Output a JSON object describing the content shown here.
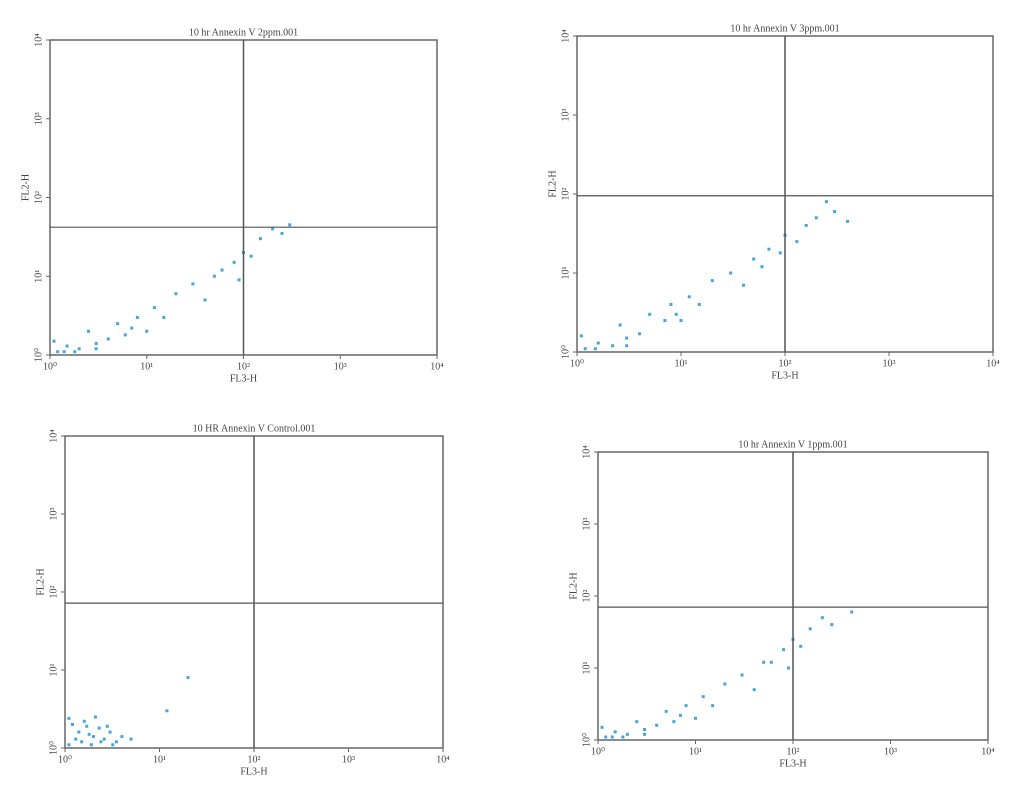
{
  "chart_data": [
    {
      "type": "scatter",
      "title": "10 hr Annexin V 2ppm.001",
      "x_label": "FL3-H",
      "y_label": "FL2-H",
      "log_scale": true,
      "xlim": [
        1,
        10000
      ],
      "ylim": [
        1,
        10000
      ],
      "xticks": [
        {
          "value": 1,
          "label": "10⁰"
        },
        {
          "value": 10,
          "label": "10¹"
        },
        {
          "value": 100,
          "label": "10²"
        },
        {
          "value": 1000,
          "label": "10³"
        },
        {
          "value": 10000,
          "label": "10⁴"
        }
      ],
      "yticks": [
        {
          "value": 1,
          "label": "10⁰"
        },
        {
          "value": 10,
          "label": "10¹"
        },
        {
          "value": 100,
          "label": "10²"
        },
        {
          "value": 1000,
          "label": "10³"
        },
        {
          "value": 10000,
          "label": "10⁴"
        }
      ],
      "quadrant": {
        "x": 100,
        "y": 42
      },
      "series": [
        {
          "color": "#1a8fd0",
          "x": [
            1.2,
            1.5,
            2,
            1.1,
            3,
            2.5,
            1.8,
            5,
            4,
            8,
            12,
            6,
            20,
            30,
            15,
            50,
            80,
            60,
            100,
            120,
            150,
            200,
            250,
            300,
            40,
            10,
            3,
            1.4,
            7,
            90
          ],
          "values": [
            1.1,
            1.3,
            1.2,
            1.5,
            1.4,
            2,
            1.1,
            2.5,
            1.6,
            3,
            4,
            1.8,
            6,
            8,
            3,
            10,
            15,
            12,
            20,
            18,
            30,
            40,
            35,
            45,
            5,
            2,
            1.2,
            1.1,
            2.2,
            9
          ]
        }
      ]
    },
    {
      "type": "scatter",
      "title": "10 hr Annexin V 3ppm.001",
      "x_label": "FL3-H",
      "y_label": "FL2-H",
      "log_scale": true,
      "xlim": [
        1,
        10000
      ],
      "ylim": [
        1,
        10000
      ],
      "xticks": [
        {
          "value": 1,
          "label": "10⁰"
        },
        {
          "value": 10,
          "label": "10¹"
        },
        {
          "value": 100,
          "label": "10²"
        },
        {
          "value": 1000,
          "label": "10³"
        },
        {
          "value": 10000,
          "label": "10⁴"
        }
      ],
      "yticks": [
        {
          "value": 1,
          "label": "10⁰"
        },
        {
          "value": 10,
          "label": "10¹"
        },
        {
          "value": 100,
          "label": "10²"
        },
        {
          "value": 1000,
          "label": "10³"
        },
        {
          "value": 10000,
          "label": "10⁴"
        }
      ],
      "quadrant": {
        "x": 100,
        "y": 95
      },
      "series": [
        {
          "color": "#1a8fd0",
          "x": [
            1.2,
            1.6,
            2.2,
            1.1,
            3,
            2.6,
            5,
            4,
            8,
            12,
            7,
            20,
            30,
            15,
            50,
            70,
            60,
            100,
            130,
            160,
            200,
            300,
            400,
            40,
            10,
            3,
            1.5,
            9,
            90,
            250
          ],
          "values": [
            1.1,
            1.3,
            1.2,
            1.6,
            1.5,
            2.2,
            3,
            1.7,
            4,
            5,
            2.5,
            8,
            10,
            4,
            15,
            20,
            12,
            30,
            25,
            40,
            50,
            60,
            45,
            7,
            2.5,
            1.2,
            1.1,
            3,
            18,
            80
          ]
        }
      ]
    },
    {
      "type": "scatter",
      "title": "10 HR Annexin V Control.001",
      "x_label": "FL3-H",
      "y_label": "FL2-H",
      "log_scale": true,
      "xlim": [
        1,
        10000
      ],
      "ylim": [
        1,
        10000
      ],
      "xticks": [
        {
          "value": 1,
          "label": "10⁰"
        },
        {
          "value": 10,
          "label": "10¹"
        },
        {
          "value": 100,
          "label": "10²"
        },
        {
          "value": 1000,
          "label": "10³"
        },
        {
          "value": 10000,
          "label": "10⁴"
        }
      ],
      "yticks": [
        {
          "value": 1,
          "label": "10⁰"
        },
        {
          "value": 10,
          "label": "10¹"
        },
        {
          "value": 100,
          "label": "10²"
        },
        {
          "value": 1000,
          "label": "10³"
        },
        {
          "value": 10000,
          "label": "10⁴"
        }
      ],
      "quadrant": {
        "x": 100,
        "y": 72
      },
      "series": [
        {
          "color": "#1a8fd0",
          "x": [
            1.1,
            1.3,
            1.5,
            1.8,
            2,
            2.3,
            2.6,
            3,
            3.5,
            4,
            1.2,
            1.6,
            2.1,
            2.8,
            1.4,
            1.9,
            2.4,
            3.2,
            1.1,
            1.7,
            5,
            12,
            20
          ],
          "values": [
            1.1,
            1.3,
            1.2,
            1.5,
            1.4,
            1.8,
            1.3,
            1.6,
            1.2,
            1.4,
            2,
            2.2,
            2.5,
            1.9,
            1.6,
            1.1,
            1.2,
            1.1,
            2.4,
            1.9,
            1.3,
            3,
            8
          ]
        }
      ]
    },
    {
      "type": "scatter",
      "title": "10 hr Annexin V 1ppm.001",
      "x_label": "FL3-H",
      "y_label": "FL2-H",
      "log_scale": true,
      "xlim": [
        1,
        10000
      ],
      "ylim": [
        1,
        10000
      ],
      "xticks": [
        {
          "value": 1,
          "label": "10⁰"
        },
        {
          "value": 10,
          "label": "10¹"
        },
        {
          "value": 100,
          "label": "10²"
        },
        {
          "value": 1000,
          "label": "10³"
        },
        {
          "value": 10000,
          "label": "10⁴"
        }
      ],
      "yticks": [
        {
          "value": 1,
          "label": "10⁰"
        },
        {
          "value": 10,
          "label": "10¹"
        },
        {
          "value": 100,
          "label": "10²"
        },
        {
          "value": 1000,
          "label": "10³"
        },
        {
          "value": 10000,
          "label": "10⁴"
        }
      ],
      "quadrant": {
        "x": 100,
        "y": 70
      },
      "series": [
        {
          "color": "#1a8fd0",
          "x": [
            1.2,
            1.5,
            2,
            1.1,
            3,
            2.5,
            1.8,
            5,
            4,
            8,
            12,
            6,
            20,
            30,
            15,
            50,
            80,
            60,
            100,
            120,
            150,
            200,
            250,
            400,
            40,
            10,
            3,
            1.4,
            7,
            90
          ],
          "values": [
            1.1,
            1.3,
            1.2,
            1.5,
            1.4,
            1.8,
            1.1,
            2.5,
            1.6,
            3,
            4,
            1.8,
            6,
            8,
            3,
            12,
            18,
            12,
            25,
            20,
            35,
            50,
            40,
            60,
            5,
            2,
            1.2,
            1.1,
            2.2,
            10
          ]
        }
      ]
    }
  ]
}
